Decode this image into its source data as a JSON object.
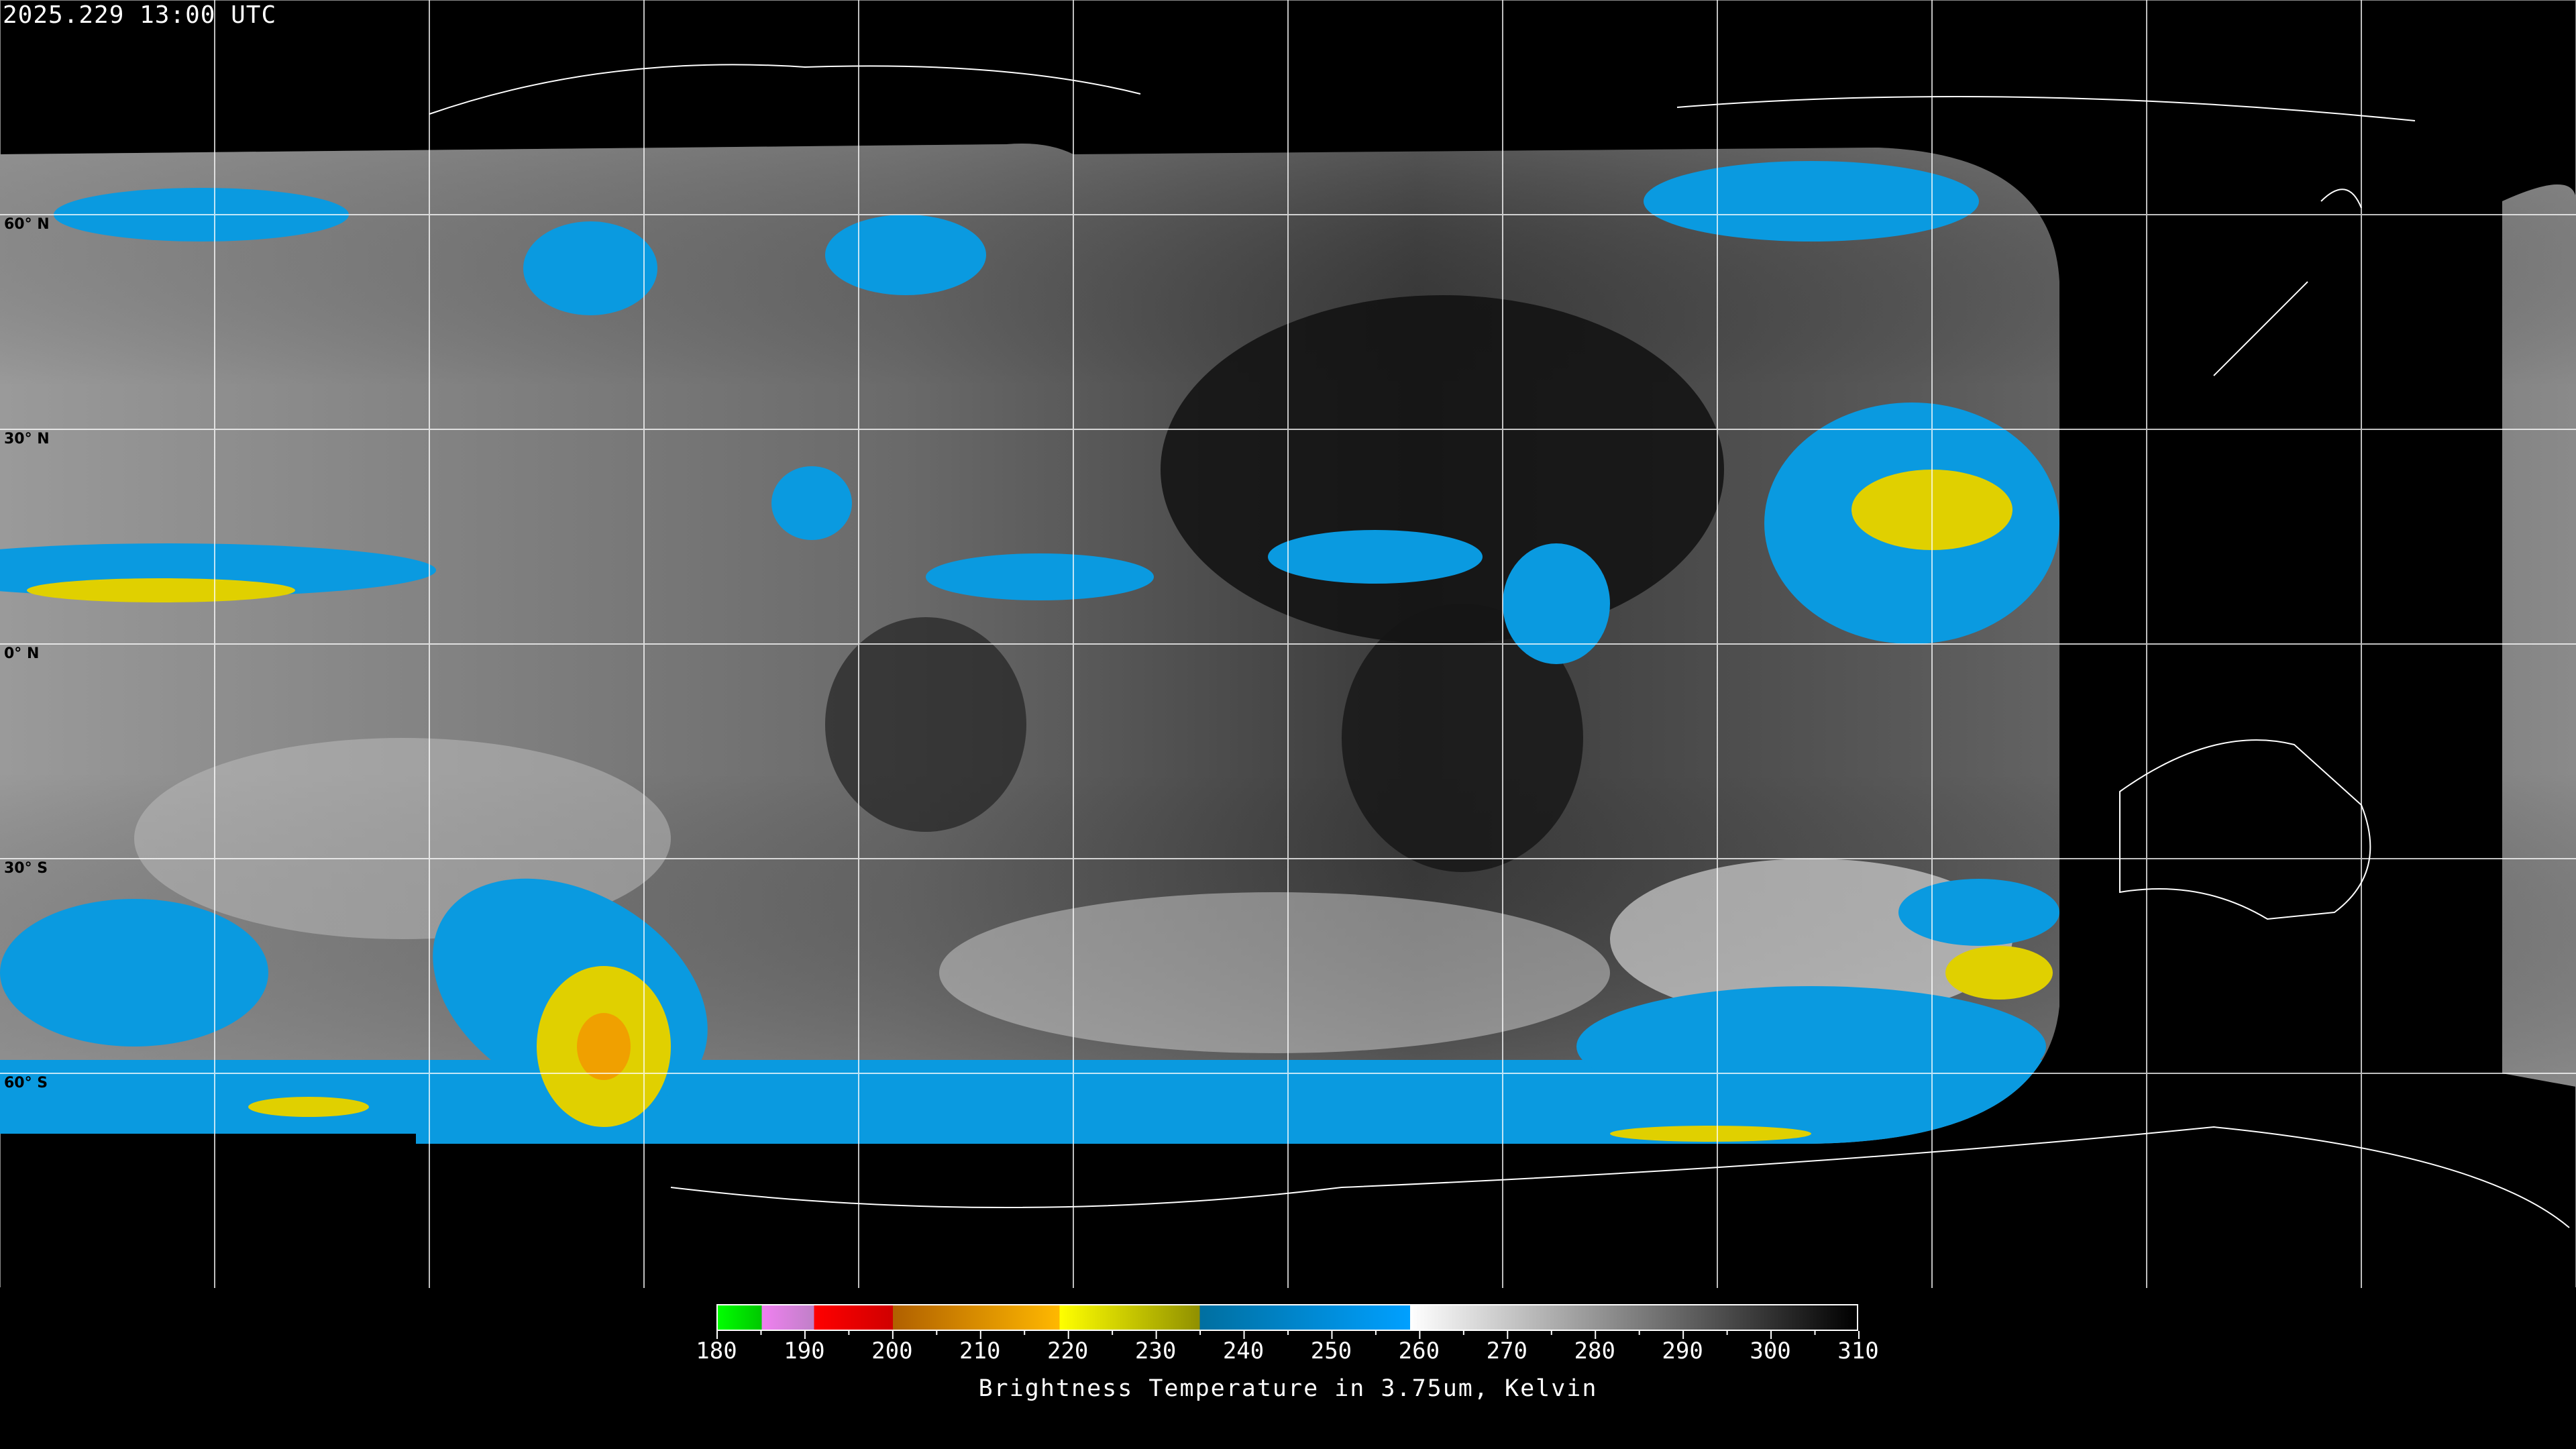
{
  "header": {
    "timestamp": "2025.229 13:00 UTC"
  },
  "map": {
    "projection": "equirectangular",
    "latitude_labels": [
      "60° N",
      "30° N",
      "0° N",
      "30° S",
      "60° S"
    ],
    "latitudes": [
      60,
      30,
      0,
      -30,
      -60
    ],
    "longitude_grid_step_deg": 30,
    "background_color": "#000000",
    "grid_color": "#ffffff"
  },
  "colorbar": {
    "title": "Brightness Temperature in 3.75um, Kelvin",
    "min": 180,
    "max": 310,
    "tick_labels": [
      "180",
      "190",
      "200",
      "210",
      "220",
      "230",
      "240",
      "250",
      "260",
      "270",
      "280",
      "290",
      "300",
      "310"
    ],
    "segments": [
      {
        "from": 180,
        "to": 185,
        "start_color": "#00ff00",
        "end_color": "#00c800"
      },
      {
        "from": 185,
        "to": 191,
        "start_color": "#f080f0",
        "end_color": "#c080c8"
      },
      {
        "from": 191,
        "to": 200,
        "start_color": "#ff0000",
        "end_color": "#d00000"
      },
      {
        "from": 200,
        "to": 219,
        "start_color": "#b06000",
        "end_color": "#ffb800"
      },
      {
        "from": 219,
        "to": 235,
        "start_color": "#ffff00",
        "end_color": "#909000"
      },
      {
        "from": 235,
        "to": 259,
        "start_color": "#006fa0",
        "end_color": "#00a0ff"
      },
      {
        "from": 259,
        "to": 310,
        "start_color": "#ffffff",
        "end_color": "#000000"
      }
    ]
  }
}
